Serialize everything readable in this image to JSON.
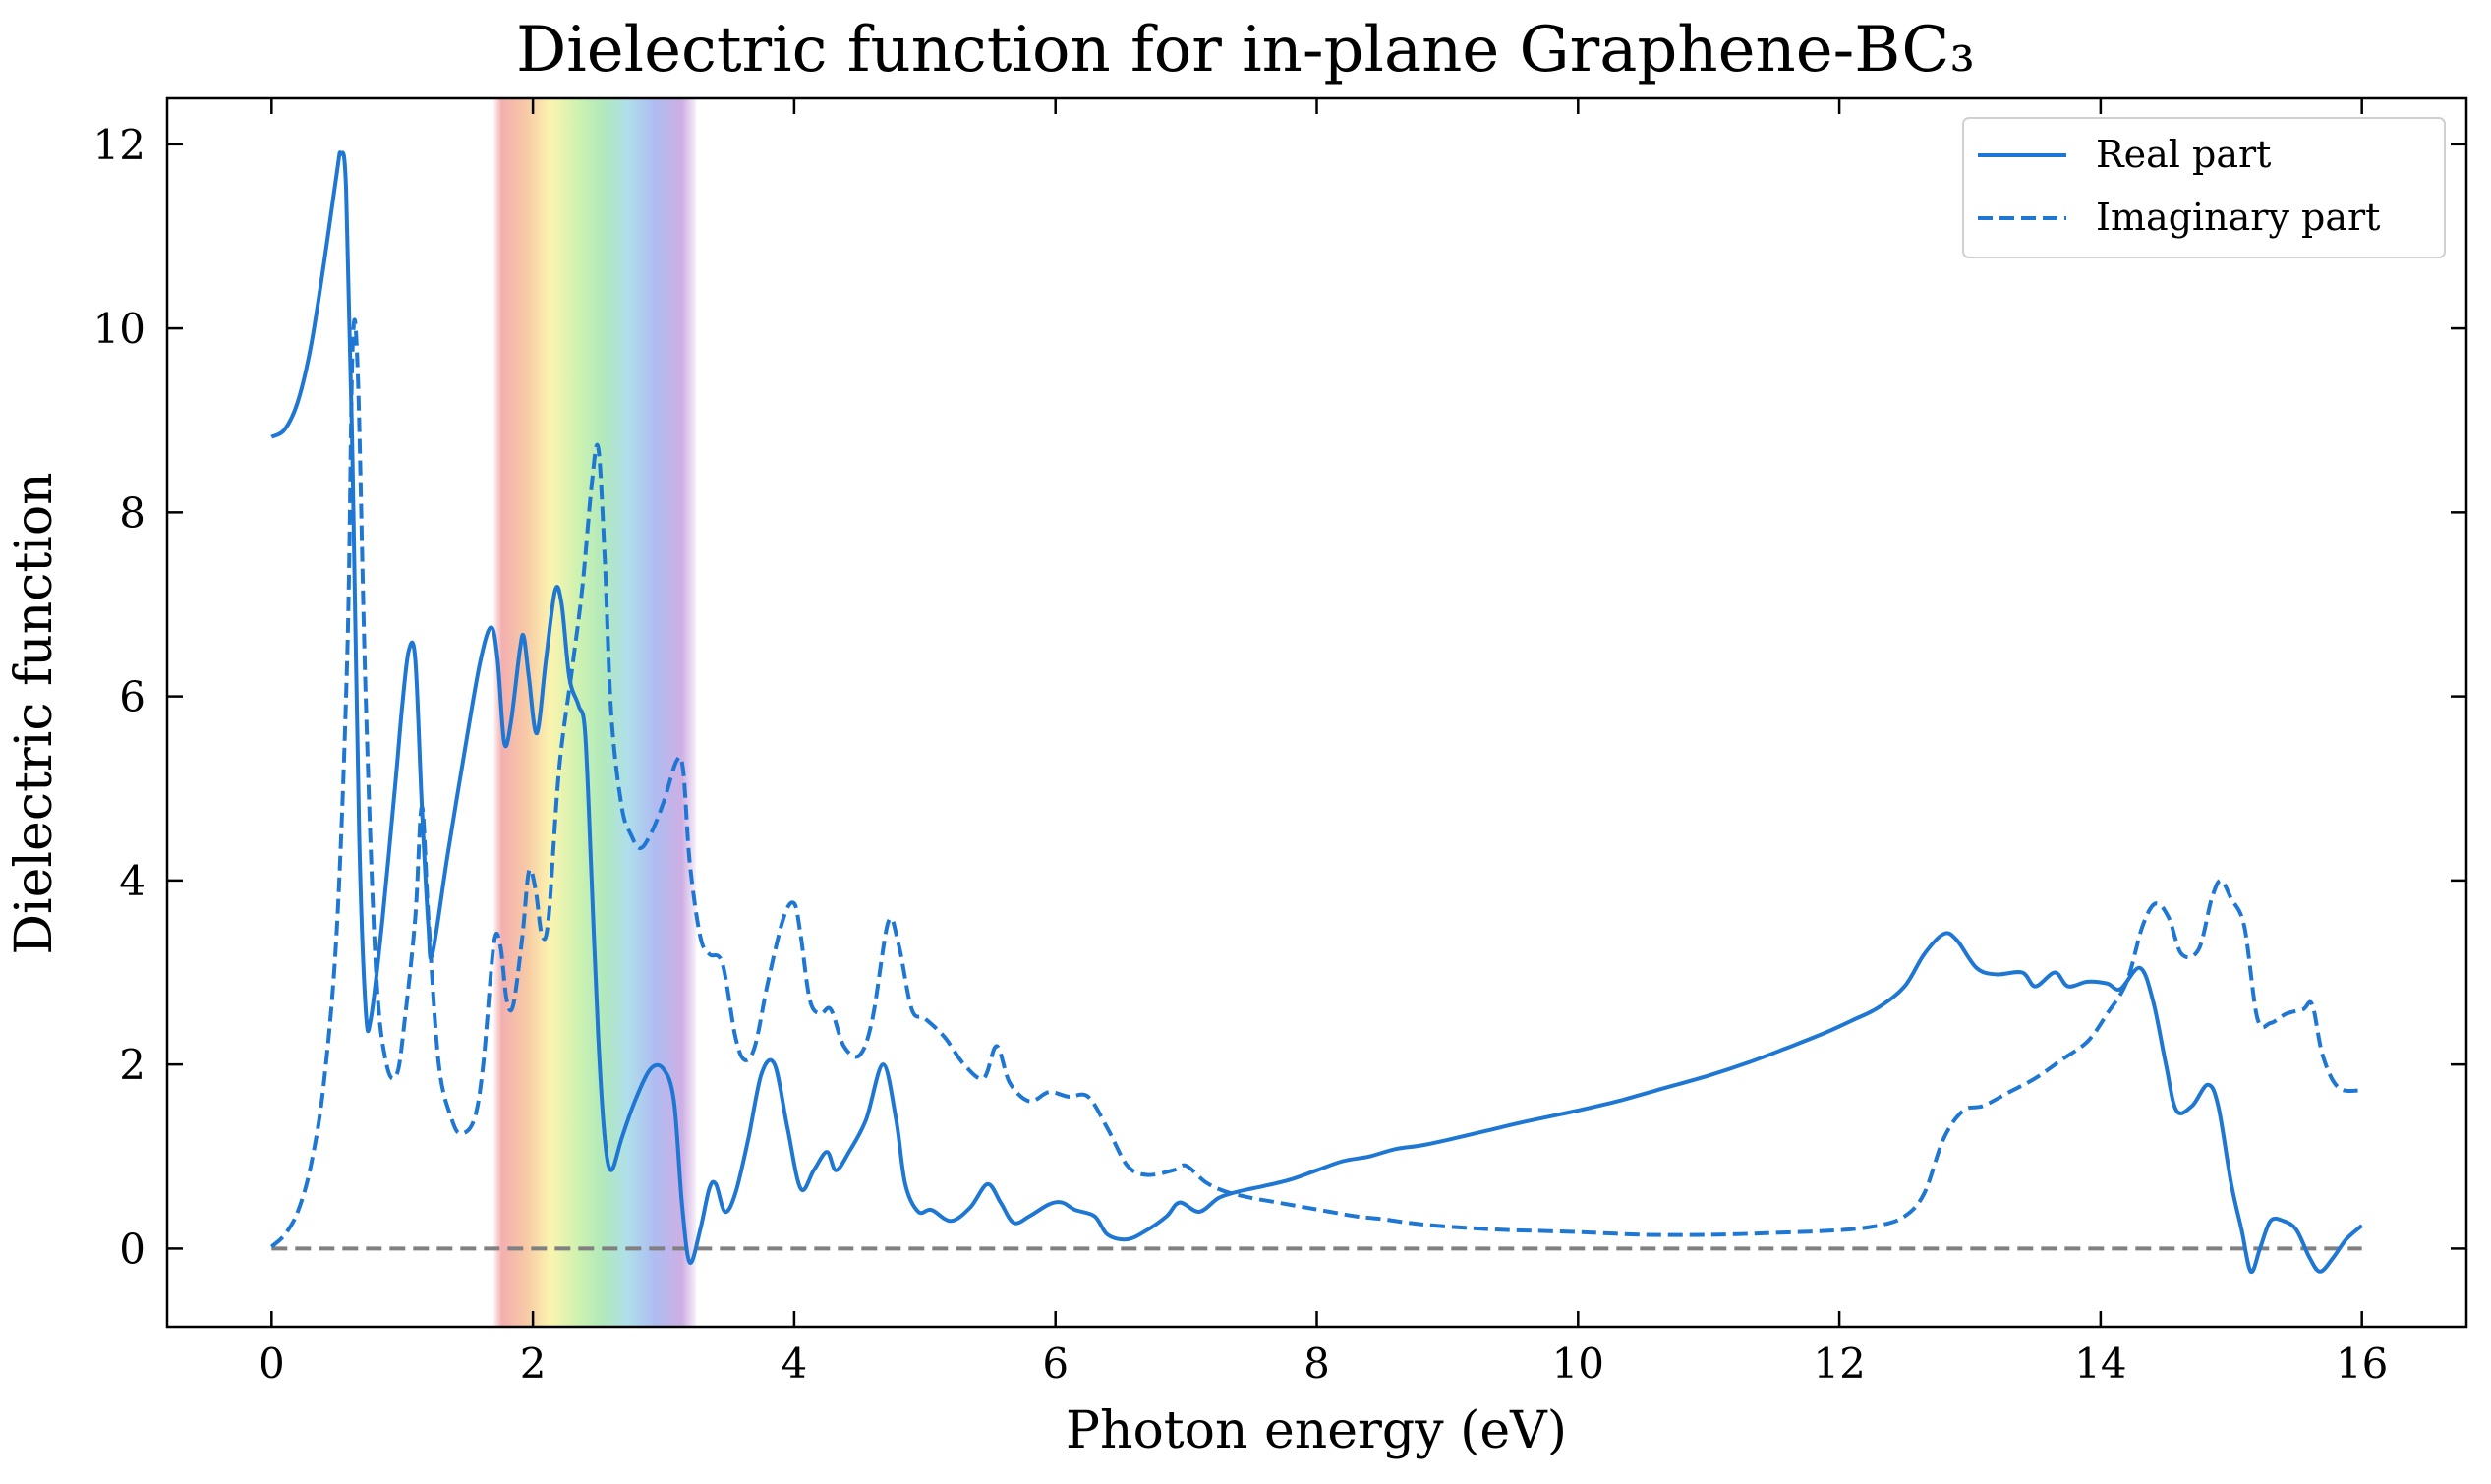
{
  "chart_data": {
    "type": "line",
    "title": "Dielectric function for in-plane Graphene-BC₃",
    "xlabel": "Photon energy (eV)",
    "ylabel": "Dielectric function",
    "xlim": [
      -0.8,
      16.8
    ],
    "ylim": [
      -0.85,
      12.5
    ],
    "xticks": [
      0,
      2,
      4,
      6,
      8,
      10,
      12,
      14,
      16
    ],
    "yticks": [
      0,
      2,
      4,
      6,
      8,
      10,
      12
    ],
    "grid": false,
    "legend_position": "top-right",
    "visible_band": {
      "x_range": [
        1.7,
        3.25
      ],
      "meaning": "visible spectrum"
    },
    "zero_line": {
      "y": 0,
      "color": "#808080",
      "style": "dashed"
    },
    "series": [
      {
        "name": "Real part",
        "color": "#1f77d4",
        "style": "solid",
        "points": [
          [
            0.0,
            8.82
          ],
          [
            0.1,
            8.9
          ],
          [
            0.2,
            9.2
          ],
          [
            0.3,
            9.8
          ],
          [
            0.4,
            10.7
          ],
          [
            0.5,
            11.7
          ],
          [
            0.53,
            11.9
          ],
          [
            0.57,
            11.5
          ],
          [
            0.62,
            8.5
          ],
          [
            0.67,
            4.5
          ],
          [
            0.72,
            2.6
          ],
          [
            0.76,
            2.5
          ],
          [
            0.85,
            3.6
          ],
          [
            0.95,
            5.1
          ],
          [
            1.0,
            5.9
          ],
          [
            1.05,
            6.5
          ],
          [
            1.1,
            6.4
          ],
          [
            1.15,
            4.8
          ],
          [
            1.2,
            3.5
          ],
          [
            1.23,
            3.2
          ],
          [
            1.35,
            4.3
          ],
          [
            1.5,
            5.6
          ],
          [
            1.6,
            6.4
          ],
          [
            1.68,
            6.75
          ],
          [
            1.73,
            6.4
          ],
          [
            1.78,
            5.5
          ],
          [
            1.83,
            5.7
          ],
          [
            1.9,
            6.5
          ],
          [
            1.93,
            6.65
          ],
          [
            1.97,
            6.2
          ],
          [
            2.03,
            5.6
          ],
          [
            2.1,
            6.4
          ],
          [
            2.17,
            7.15
          ],
          [
            2.22,
            7.0
          ],
          [
            2.28,
            6.2
          ],
          [
            2.35,
            5.9
          ],
          [
            2.4,
            5.6
          ],
          [
            2.45,
            4.0
          ],
          [
            2.5,
            2.3
          ],
          [
            2.55,
            1.2
          ],
          [
            2.6,
            0.85
          ],
          [
            2.68,
            1.2
          ],
          [
            2.78,
            1.6
          ],
          [
            2.9,
            1.95
          ],
          [
            3.0,
            1.95
          ],
          [
            3.08,
            1.6
          ],
          [
            3.14,
            0.5
          ],
          [
            3.2,
            -0.15
          ],
          [
            3.28,
            0.2
          ],
          [
            3.35,
            0.65
          ],
          [
            3.4,
            0.7
          ],
          [
            3.47,
            0.4
          ],
          [
            3.55,
            0.6
          ],
          [
            3.65,
            1.2
          ],
          [
            3.75,
            1.9
          ],
          [
            3.85,
            2.0
          ],
          [
            3.95,
            1.3
          ],
          [
            4.05,
            0.65
          ],
          [
            4.15,
            0.85
          ],
          [
            4.25,
            1.05
          ],
          [
            4.32,
            0.85
          ],
          [
            4.42,
            1.05
          ],
          [
            4.55,
            1.4
          ],
          [
            4.68,
            2.0
          ],
          [
            4.78,
            1.4
          ],
          [
            4.85,
            0.7
          ],
          [
            4.95,
            0.4
          ],
          [
            5.05,
            0.42
          ],
          [
            5.2,
            0.3
          ],
          [
            5.35,
            0.45
          ],
          [
            5.48,
            0.7
          ],
          [
            5.58,
            0.5
          ],
          [
            5.68,
            0.28
          ],
          [
            5.8,
            0.35
          ],
          [
            5.95,
            0.48
          ],
          [
            6.05,
            0.5
          ],
          [
            6.15,
            0.42
          ],
          [
            6.3,
            0.35
          ],
          [
            6.4,
            0.15
          ],
          [
            6.55,
            0.1
          ],
          [
            6.7,
            0.2
          ],
          [
            6.85,
            0.35
          ],
          [
            6.95,
            0.5
          ],
          [
            7.1,
            0.4
          ],
          [
            7.25,
            0.55
          ],
          [
            7.4,
            0.62
          ],
          [
            7.6,
            0.68
          ],
          [
            7.8,
            0.75
          ],
          [
            8.0,
            0.85
          ],
          [
            8.2,
            0.95
          ],
          [
            8.4,
            1.0
          ],
          [
            8.6,
            1.08
          ],
          [
            8.8,
            1.12
          ],
          [
            9.0,
            1.18
          ],
          [
            9.3,
            1.28
          ],
          [
            9.6,
            1.38
          ],
          [
            10.0,
            1.5
          ],
          [
            10.3,
            1.6
          ],
          [
            10.6,
            1.72
          ],
          [
            11.0,
            1.88
          ],
          [
            11.3,
            2.02
          ],
          [
            11.6,
            2.18
          ],
          [
            11.9,
            2.35
          ],
          [
            12.1,
            2.48
          ],
          [
            12.3,
            2.62
          ],
          [
            12.5,
            2.85
          ],
          [
            12.65,
            3.2
          ],
          [
            12.8,
            3.42
          ],
          [
            12.9,
            3.35
          ],
          [
            13.05,
            3.05
          ],
          [
            13.2,
            2.98
          ],
          [
            13.4,
            3.0
          ],
          [
            13.5,
            2.85
          ],
          [
            13.65,
            3.0
          ],
          [
            13.75,
            2.85
          ],
          [
            13.9,
            2.9
          ],
          [
            14.05,
            2.88
          ],
          [
            14.15,
            2.82
          ],
          [
            14.3,
            3.05
          ],
          [
            14.4,
            2.7
          ],
          [
            14.5,
            2.0
          ],
          [
            14.58,
            1.5
          ],
          [
            14.7,
            1.55
          ],
          [
            14.82,
            1.78
          ],
          [
            14.9,
            1.55
          ],
          [
            15.0,
            0.7
          ],
          [
            15.08,
            0.2
          ],
          [
            15.15,
            -0.25
          ],
          [
            15.22,
            0.0
          ],
          [
            15.3,
            0.3
          ],
          [
            15.4,
            0.3
          ],
          [
            15.5,
            0.2
          ],
          [
            15.6,
            -0.1
          ],
          [
            15.68,
            -0.25
          ],
          [
            15.78,
            -0.1
          ],
          [
            15.88,
            0.1
          ],
          [
            16.0,
            0.25
          ]
        ]
      },
      {
        "name": "Imaginary part",
        "color": "#1f77d4",
        "style": "dashed",
        "points": [
          [
            0.0,
            0.02
          ],
          [
            0.1,
            0.15
          ],
          [
            0.2,
            0.4
          ],
          [
            0.3,
            0.9
          ],
          [
            0.4,
            1.8
          ],
          [
            0.5,
            3.5
          ],
          [
            0.58,
            6.5
          ],
          [
            0.62,
            9.8
          ],
          [
            0.66,
            9.5
          ],
          [
            0.72,
            6.0
          ],
          [
            0.8,
            3.0
          ],
          [
            0.88,
            2.0
          ],
          [
            0.96,
            1.9
          ],
          [
            1.02,
            2.5
          ],
          [
            1.1,
            3.6
          ],
          [
            1.15,
            4.8
          ],
          [
            1.2,
            3.6
          ],
          [
            1.28,
            2.0
          ],
          [
            1.38,
            1.4
          ],
          [
            1.45,
            1.25
          ],
          [
            1.55,
            1.4
          ],
          [
            1.62,
            2.0
          ],
          [
            1.7,
            3.3
          ],
          [
            1.75,
            3.3
          ],
          [
            1.8,
            2.7
          ],
          [
            1.85,
            2.65
          ],
          [
            1.92,
            3.4
          ],
          [
            1.97,
            4.1
          ],
          [
            2.02,
            3.9
          ],
          [
            2.07,
            3.4
          ],
          [
            2.12,
            3.6
          ],
          [
            2.2,
            5.2
          ],
          [
            2.3,
            6.3
          ],
          [
            2.38,
            7.2
          ],
          [
            2.45,
            8.3
          ],
          [
            2.5,
            8.7
          ],
          [
            2.55,
            7.5
          ],
          [
            2.6,
            5.8
          ],
          [
            2.68,
            4.8
          ],
          [
            2.75,
            4.5
          ],
          [
            2.82,
            4.35
          ],
          [
            2.9,
            4.5
          ],
          [
            3.0,
            4.85
          ],
          [
            3.1,
            5.3
          ],
          [
            3.15,
            5.2
          ],
          [
            3.2,
            4.2
          ],
          [
            3.28,
            3.4
          ],
          [
            3.35,
            3.2
          ],
          [
            3.45,
            3.1
          ],
          [
            3.55,
            2.3
          ],
          [
            3.62,
            2.05
          ],
          [
            3.7,
            2.2
          ],
          [
            3.8,
            2.9
          ],
          [
            3.92,
            3.6
          ],
          [
            4.0,
            3.75
          ],
          [
            4.05,
            3.4
          ],
          [
            4.12,
            2.7
          ],
          [
            4.2,
            2.55
          ],
          [
            4.28,
            2.6
          ],
          [
            4.38,
            2.2
          ],
          [
            4.5,
            2.1
          ],
          [
            4.6,
            2.5
          ],
          [
            4.72,
            3.55
          ],
          [
            4.8,
            3.3
          ],
          [
            4.9,
            2.6
          ],
          [
            5.0,
            2.5
          ],
          [
            5.15,
            2.3
          ],
          [
            5.3,
            2.0
          ],
          [
            5.45,
            1.85
          ],
          [
            5.55,
            2.2
          ],
          [
            5.65,
            1.8
          ],
          [
            5.8,
            1.6
          ],
          [
            5.95,
            1.7
          ],
          [
            6.1,
            1.65
          ],
          [
            6.25,
            1.65
          ],
          [
            6.4,
            1.3
          ],
          [
            6.55,
            0.9
          ],
          [
            6.7,
            0.8
          ],
          [
            6.9,
            0.85
          ],
          [
            7.0,
            0.9
          ],
          [
            7.15,
            0.72
          ],
          [
            7.3,
            0.62
          ],
          [
            7.5,
            0.55
          ],
          [
            7.7,
            0.5
          ],
          [
            7.9,
            0.45
          ],
          [
            8.1,
            0.4
          ],
          [
            8.3,
            0.35
          ],
          [
            8.5,
            0.32
          ],
          [
            8.7,
            0.28
          ],
          [
            8.9,
            0.25
          ],
          [
            9.2,
            0.22
          ],
          [
            9.5,
            0.2
          ],
          [
            10.0,
            0.18
          ],
          [
            10.5,
            0.15
          ],
          [
            11.0,
            0.15
          ],
          [
            11.5,
            0.17
          ],
          [
            12.0,
            0.2
          ],
          [
            12.3,
            0.25
          ],
          [
            12.5,
            0.35
          ],
          [
            12.65,
            0.6
          ],
          [
            12.8,
            1.2
          ],
          [
            12.95,
            1.5
          ],
          [
            13.1,
            1.55
          ],
          [
            13.3,
            1.7
          ],
          [
            13.5,
            1.85
          ],
          [
            13.7,
            2.05
          ],
          [
            13.9,
            2.25
          ],
          [
            14.05,
            2.55
          ],
          [
            14.2,
            2.9
          ],
          [
            14.32,
            3.5
          ],
          [
            14.42,
            3.75
          ],
          [
            14.52,
            3.6
          ],
          [
            14.62,
            3.2
          ],
          [
            14.75,
            3.25
          ],
          [
            14.85,
            3.8
          ],
          [
            14.92,
            4.0
          ],
          [
            15.0,
            3.8
          ],
          [
            15.1,
            3.5
          ],
          [
            15.2,
            2.5
          ],
          [
            15.3,
            2.45
          ],
          [
            15.42,
            2.55
          ],
          [
            15.55,
            2.6
          ],
          [
            15.62,
            2.65
          ],
          [
            15.7,
            2.1
          ],
          [
            15.82,
            1.75
          ],
          [
            16.0,
            1.72
          ]
        ]
      }
    ]
  }
}
